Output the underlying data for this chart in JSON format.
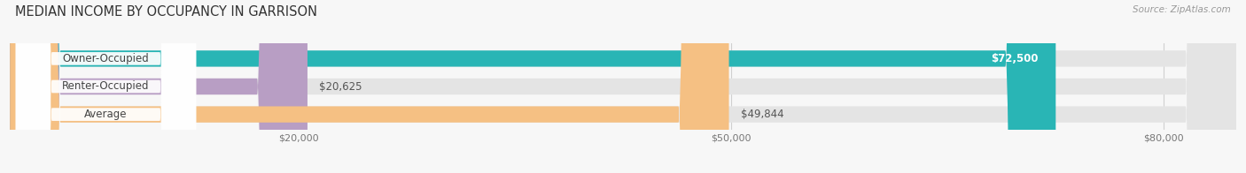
{
  "title": "MEDIAN INCOME BY OCCUPANCY IN GARRISON",
  "source": "Source: ZipAtlas.com",
  "categories": [
    "Owner-Occupied",
    "Renter-Occupied",
    "Average"
  ],
  "values": [
    72500,
    20625,
    49844
  ],
  "bar_colors": [
    "#29b5b5",
    "#b89ec4",
    "#f5c083"
  ],
  "value_inside": [
    true,
    false,
    false
  ],
  "value_labels": [
    "$72,500",
    "$20,625",
    "$49,844"
  ],
  "xlim": [
    0,
    85000
  ],
  "xticks": [
    20000,
    50000,
    80000
  ],
  "xtick_labels": [
    "$20,000",
    "$50,000",
    "$80,000"
  ],
  "title_fontsize": 10.5,
  "label_fontsize": 8.5,
  "value_fontsize": 8.5,
  "bar_height": 0.58,
  "figsize": [
    14.06,
    1.96
  ],
  "dpi": 100,
  "bg_color": "#f7f7f7",
  "bar_bg_color": "#e4e4e4",
  "grid_color": "#d0d0d0"
}
